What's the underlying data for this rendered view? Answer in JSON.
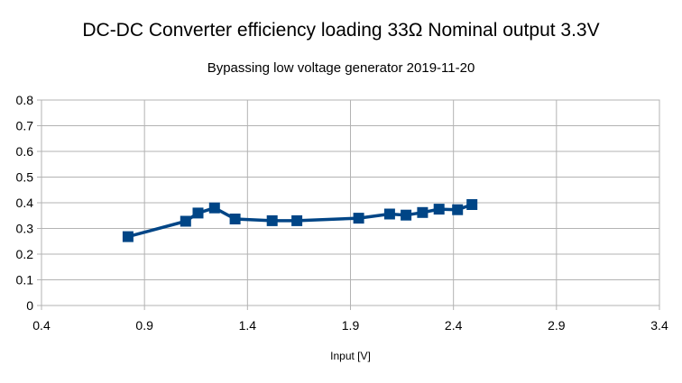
{
  "chart_data": {
    "type": "line",
    "title": "DC-DC Converter efficiency loading 33Ω Nominal output 3.3V",
    "subtitle": "Bypassing low voltage generator 2019-11-20",
    "xlabel": "Input [V]",
    "ylabel": "",
    "xlim": [
      0.4,
      3.4
    ],
    "ylim": [
      0,
      0.8
    ],
    "x_ticks": [
      "0.4",
      "0.9",
      "1.4",
      "1.9",
      "2.4",
      "2.9",
      "3.4"
    ],
    "y_ticks": [
      "0",
      "0.1",
      "0.2",
      "0.3",
      "0.4",
      "0.5",
      "0.6",
      "0.7",
      "0.8"
    ],
    "grid": true,
    "legend": "none",
    "series": [
      {
        "color": "#004586",
        "marker": "square",
        "points": [
          {
            "x": 0.82,
            "y": 0.268
          },
          {
            "x": 1.1,
            "y": 0.328
          },
          {
            "x": 1.16,
            "y": 0.36
          },
          {
            "x": 1.24,
            "y": 0.38
          },
          {
            "x": 1.34,
            "y": 0.337
          },
          {
            "x": 1.52,
            "y": 0.33
          },
          {
            "x": 1.64,
            "y": 0.33
          },
          {
            "x": 1.94,
            "y": 0.34
          },
          {
            "x": 2.09,
            "y": 0.356
          },
          {
            "x": 2.17,
            "y": 0.352
          },
          {
            "x": 2.25,
            "y": 0.362
          },
          {
            "x": 2.33,
            "y": 0.375
          },
          {
            "x": 2.42,
            "y": 0.373
          },
          {
            "x": 2.49,
            "y": 0.393
          }
        ]
      }
    ]
  }
}
